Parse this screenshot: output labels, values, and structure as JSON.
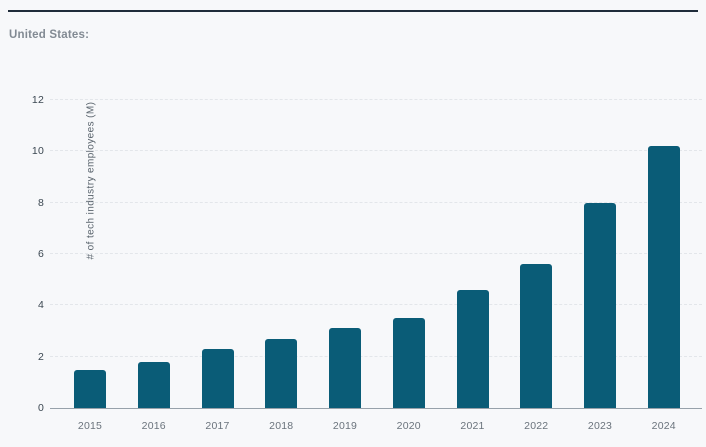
{
  "page": {
    "title_label": "United States:"
  },
  "colors": {
    "background": "#f7f8fa",
    "top_rule": "#1f2c3a",
    "title_text": "#828a93",
    "bar": "#0a5c77",
    "grid": "#e3e6ea",
    "axis_line": "#97a1aa",
    "tick_text": "#3a4650",
    "year_text": "#6a737c",
    "axis_title_text": "#5a646d"
  },
  "chart_data": {
    "type": "bar",
    "title": "",
    "xlabel": "",
    "ylabel": "# of tech industry employees (M)",
    "categories": [
      "2015",
      "2016",
      "2017",
      "2018",
      "2019",
      "2020",
      "2021",
      "2022",
      "2023",
      "2024"
    ],
    "values": [
      1.5,
      1.8,
      2.3,
      2.7,
      3.1,
      3.5,
      4.6,
      5.6,
      8.0,
      10.2
    ],
    "ylim": [
      0,
      12
    ],
    "yticks": [
      0,
      2,
      4,
      6,
      8,
      10,
      12
    ],
    "grid": "horizontal-dashed",
    "legend": "none"
  }
}
